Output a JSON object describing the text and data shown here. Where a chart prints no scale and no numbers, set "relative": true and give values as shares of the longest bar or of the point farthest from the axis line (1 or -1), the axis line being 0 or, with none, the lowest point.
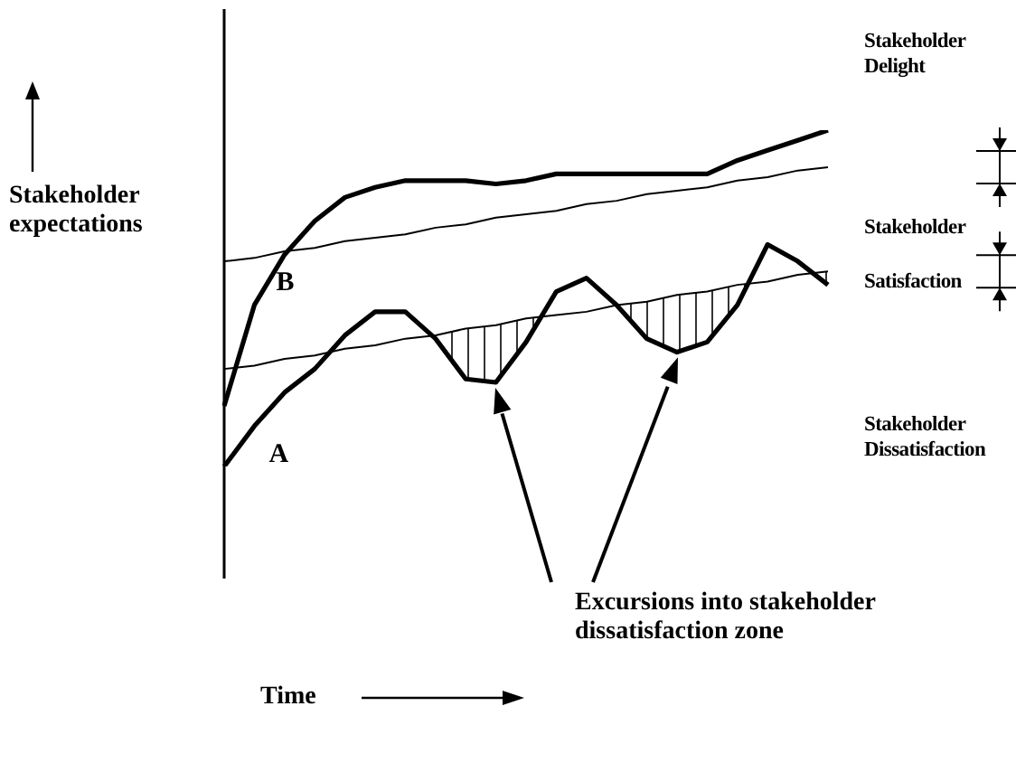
{
  "chart_data": {
    "type": "line",
    "relative": true,
    "ylabel": "Stakeholder expectations",
    "categories": [
      null,
      null,
      null,
      null,
      null,
      null,
      null,
      null,
      null,
      null,
      null,
      null,
      null,
      null,
      null,
      null,
      null,
      null,
      null,
      null,
      null
    ],
    "series": [
      {
        "name": "B",
        "color": "#000000",
        "values": [
          0.18,
          0.48,
          0.63,
          0.73,
          0.8,
          0.83,
          0.85,
          0.85,
          0.85,
          0.84,
          0.85,
          0.87,
          0.87,
          0.87,
          0.87,
          0.87,
          0.87,
          0.91,
          0.94,
          0.97,
          1
        ]
      },
      {
        "name": "A",
        "color": "#000000",
        "values": [
          0,
          0.12,
          0.22,
          0.29,
          0.39,
          0.46,
          0.46,
          0.38,
          0.26,
          0.25,
          0.37,
          0.52,
          0.56,
          0.48,
          0.38,
          0.34,
          0.37,
          0.48,
          0.66,
          0.61,
          0.54
        ]
      },
      {
        "color": "#000000",
        "values": [
          0.61,
          0.62,
          0.64,
          0.65,
          0.67,
          0.68,
          0.69,
          0.71,
          0.72,
          0.74,
          0.75,
          0.76,
          0.78,
          0.79,
          0.81,
          0.82,
          0.83,
          0.85,
          0.86,
          0.88,
          0.89
        ]
      },
      {
        "color": "#000000",
        "values": [
          0.29,
          0.3,
          0.32,
          0.33,
          0.35,
          0.36,
          0.38,
          0.39,
          0.41,
          0.42,
          0.44,
          0.45,
          0.46,
          0.48,
          0.49,
          0.51,
          0.52,
          0.54,
          0.55,
          0.57,
          0.58
        ]
      }
    ],
    "annotations": [
      "Stakeholder Delight",
      "Stakeholder Satisfaction",
      "Stakeholder Dissatisfaction",
      "Excursions into stakeholder dissatisfaction zone",
      "Time"
    ],
    "grid": false,
    "legend": false,
    "marker": "none",
    "line_style": "solid"
  }
}
